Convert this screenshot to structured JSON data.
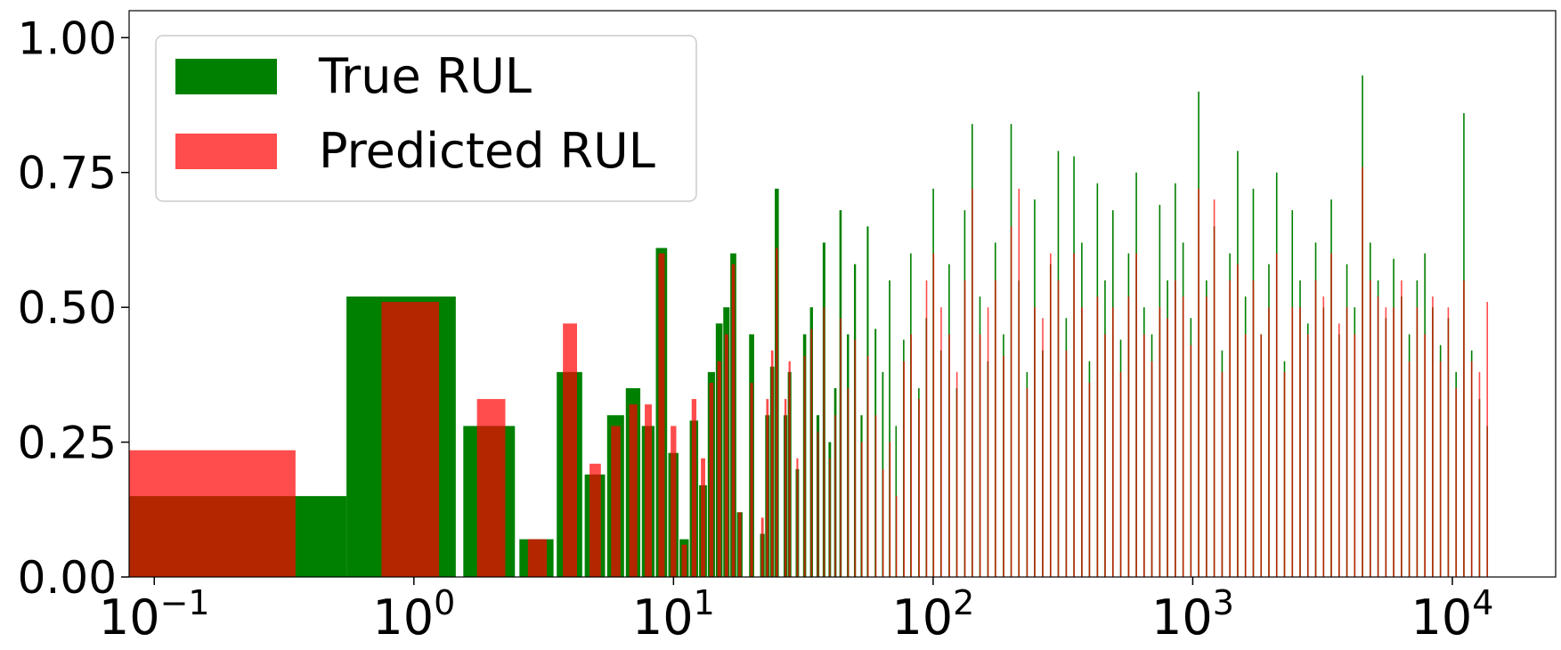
{
  "chart_data": {
    "type": "bar",
    "x_scale": "log",
    "xlim": [
      0.08,
      25000
    ],
    "ylim": [
      0.0,
      1.05
    ],
    "grid": false,
    "legend_position": "top-left",
    "x_tick_labels": [
      {
        "value": 0.1,
        "base": "10",
        "exp": "−1"
      },
      {
        "value": 1,
        "base": "10",
        "exp": "0"
      },
      {
        "value": 10,
        "base": "10",
        "exp": "1"
      },
      {
        "value": 100,
        "base": "10",
        "exp": "2"
      },
      {
        "value": 1000,
        "base": "10",
        "exp": "3"
      },
      {
        "value": 10000,
        "base": "10",
        "exp": "4"
      }
    ],
    "y_tick_labels": [
      "0.00",
      "0.25",
      "0.50",
      "0.75",
      "1.00"
    ],
    "y_ticks": [
      0.0,
      0.25,
      0.5,
      0.75,
      1.0
    ],
    "series": [
      {
        "name": "True RUL",
        "color": "#008000",
        "opacity": 1.0,
        "bar_width_units": 0.45,
        "points": [
          [
            0.1,
            0.15
          ],
          [
            1,
            0.52
          ],
          [
            2,
            0.28
          ],
          [
            3,
            0.07
          ],
          [
            4,
            0.38
          ],
          [
            5,
            0.19
          ],
          [
            6,
            0.3
          ],
          [
            7,
            0.35
          ],
          [
            8,
            0.28
          ],
          [
            9,
            0.61
          ],
          [
            10,
            0.23
          ],
          [
            11,
            0.07
          ],
          [
            12,
            0.29
          ],
          [
            13,
            0.17
          ],
          [
            14,
            0.38
          ],
          [
            15,
            0.47
          ],
          [
            16,
            0.5
          ],
          [
            17,
            0.6
          ],
          [
            18,
            0.12
          ],
          [
            20,
            0.45
          ],
          [
            22,
            0.08
          ],
          [
            23,
            0.3
          ],
          [
            24,
            0.39
          ],
          [
            25,
            0.72
          ],
          [
            27,
            0.3
          ],
          [
            28,
            0.38
          ],
          [
            30,
            0.2
          ],
          [
            32,
            0.45
          ],
          [
            34,
            0.5
          ],
          [
            36,
            0.3
          ],
          [
            38,
            0.62
          ],
          [
            40,
            0.25
          ],
          [
            42,
            0.35
          ],
          [
            44,
            0.68
          ],
          [
            47,
            0.45
          ],
          [
            50,
            0.58
          ],
          [
            53,
            0.3
          ],
          [
            56,
            0.65
          ],
          [
            60,
            0.46
          ],
          [
            64,
            0.38
          ],
          [
            68,
            0.55
          ],
          [
            72,
            0.28
          ],
          [
            77,
            0.44
          ],
          [
            82,
            0.6
          ],
          [
            88,
            0.35
          ],
          [
            94,
            0.48
          ],
          [
            100,
            0.72
          ],
          [
            107,
            0.42
          ],
          [
            115,
            0.58
          ],
          [
            123,
            0.35
          ],
          [
            132,
            0.68
          ],
          [
            141,
            0.84
          ],
          [
            151,
            0.52
          ],
          [
            162,
            0.4
          ],
          [
            173,
            0.62
          ],
          [
            186,
            0.45
          ],
          [
            199,
            0.84
          ],
          [
            213,
            0.55
          ],
          [
            229,
            0.38
          ],
          [
            245,
            0.7
          ],
          [
            263,
            0.42
          ],
          [
            282,
            0.58
          ],
          [
            302,
            0.79
          ],
          [
            324,
            0.48
          ],
          [
            347,
            0.78
          ],
          [
            372,
            0.62
          ],
          [
            398,
            0.4
          ],
          [
            427,
            0.73
          ],
          [
            457,
            0.55
          ],
          [
            490,
            0.68
          ],
          [
            525,
            0.44
          ],
          [
            563,
            0.6
          ],
          [
            603,
            0.75
          ],
          [
            646,
            0.5
          ],
          [
            692,
            0.45
          ],
          [
            742,
            0.69
          ],
          [
            795,
            0.55
          ],
          [
            852,
            0.73
          ],
          [
            913,
            0.62
          ],
          [
            978,
            0.48
          ],
          [
            1048,
            0.9
          ],
          [
            1123,
            0.55
          ],
          [
            1203,
            0.65
          ],
          [
            1290,
            0.42
          ],
          [
            1382,
            0.6
          ],
          [
            1481,
            0.79
          ],
          [
            1587,
            0.52
          ],
          [
            1701,
            0.72
          ],
          [
            1823,
            0.45
          ],
          [
            1953,
            0.58
          ],
          [
            2093,
            0.75
          ],
          [
            2243,
            0.4
          ],
          [
            2404,
            0.68
          ],
          [
            2576,
            0.55
          ],
          [
            2760,
            0.47
          ],
          [
            2958,
            0.62
          ],
          [
            3170,
            0.5
          ],
          [
            3397,
            0.7
          ],
          [
            3640,
            0.45
          ],
          [
            3901,
            0.58
          ],
          [
            4180,
            0.5
          ],
          [
            4480,
            0.93
          ],
          [
            4800,
            0.62
          ],
          [
            5144,
            0.55
          ],
          [
            5512,
            0.48
          ],
          [
            5907,
            0.59
          ],
          [
            6330,
            0.52
          ],
          [
            6783,
            0.45
          ],
          [
            7269,
            0.55
          ],
          [
            7790,
            0.6
          ],
          [
            8348,
            0.5
          ],
          [
            8946,
            0.43
          ],
          [
            9586,
            0.48
          ],
          [
            10273,
            0.38
          ],
          [
            11009,
            0.86
          ],
          [
            11797,
            0.42
          ],
          [
            12642,
            0.33
          ],
          [
            13548,
            0.28
          ]
        ]
      },
      {
        "name": "Predicted RUL",
        "color": "#ff0000",
        "opacity": 0.7,
        "bar_width_units": 0.25,
        "points": [
          [
            0.1,
            0.235
          ],
          [
            1,
            0.51
          ],
          [
            2,
            0.33
          ],
          [
            3,
            0.07
          ],
          [
            4,
            0.47
          ],
          [
            5,
            0.21
          ],
          [
            6,
            0.28
          ],
          [
            7,
            0.32
          ],
          [
            8,
            0.32
          ],
          [
            9,
            0.6
          ],
          [
            10,
            0.28
          ],
          [
            11,
            0.06
          ],
          [
            12,
            0.33
          ],
          [
            13,
            0.22
          ],
          [
            14,
            0.36
          ],
          [
            15,
            0.4
          ],
          [
            16,
            0.45
          ],
          [
            17,
            0.58
          ],
          [
            18,
            0.12
          ],
          [
            20,
            0.36
          ],
          [
            22,
            0.11
          ],
          [
            23,
            0.33
          ],
          [
            24,
            0.42
          ],
          [
            25,
            0.61
          ],
          [
            27,
            0.33
          ],
          [
            28,
            0.4
          ],
          [
            30,
            0.22
          ],
          [
            32,
            0.41
          ],
          [
            34,
            0.46
          ],
          [
            36,
            0.27
          ],
          [
            38,
            0.5
          ],
          [
            40,
            0.22
          ],
          [
            42,
            0.3
          ],
          [
            44,
            0.48
          ],
          [
            47,
            0.35
          ],
          [
            50,
            0.44
          ],
          [
            53,
            0.25
          ],
          [
            56,
            0.41
          ],
          [
            60,
            0.3
          ],
          [
            64,
            0.2
          ],
          [
            68,
            0.25
          ],
          [
            72,
            0.15
          ],
          [
            77,
            0.4
          ],
          [
            82,
            0.45
          ],
          [
            88,
            0.33
          ],
          [
            94,
            0.55
          ],
          [
            100,
            0.6
          ],
          [
            107,
            0.5
          ],
          [
            115,
            0.45
          ],
          [
            123,
            0.38
          ],
          [
            132,
            0.55
          ],
          [
            141,
            0.72
          ],
          [
            151,
            0.45
          ],
          [
            162,
            0.5
          ],
          [
            173,
            0.55
          ],
          [
            186,
            0.41
          ],
          [
            199,
            0.65
          ],
          [
            213,
            0.72
          ],
          [
            229,
            0.35
          ],
          [
            245,
            0.5
          ],
          [
            263,
            0.48
          ],
          [
            282,
            0.6
          ],
          [
            302,
            0.55
          ],
          [
            324,
            0.42
          ],
          [
            347,
            0.6
          ],
          [
            372,
            0.5
          ],
          [
            398,
            0.36
          ],
          [
            427,
            0.52
          ],
          [
            457,
            0.45
          ],
          [
            490,
            0.5
          ],
          [
            525,
            0.38
          ],
          [
            563,
            0.52
          ],
          [
            603,
            0.6
          ],
          [
            646,
            0.45
          ],
          [
            692,
            0.4
          ],
          [
            742,
            0.5
          ],
          [
            795,
            0.48
          ],
          [
            852,
            0.55
          ],
          [
            913,
            0.52
          ],
          [
            978,
            0.43
          ],
          [
            1048,
            0.72
          ],
          [
            1123,
            0.52
          ],
          [
            1203,
            0.7
          ],
          [
            1290,
            0.38
          ],
          [
            1382,
            0.55
          ],
          [
            1481,
            0.58
          ],
          [
            1587,
            0.45
          ],
          [
            1701,
            0.55
          ],
          [
            1823,
            0.45
          ],
          [
            1953,
            0.5
          ],
          [
            2093,
            0.6
          ],
          [
            2243,
            0.38
          ],
          [
            2404,
            0.5
          ],
          [
            2576,
            0.5
          ],
          [
            2760,
            0.45
          ],
          [
            2958,
            0.55
          ],
          [
            3170,
            0.52
          ],
          [
            3397,
            0.6
          ],
          [
            3640,
            0.47
          ],
          [
            3901,
            0.5
          ],
          [
            4180,
            0.45
          ],
          [
            4480,
            0.76
          ],
          [
            4800,
            0.55
          ],
          [
            5144,
            0.52
          ],
          [
            5512,
            0.5
          ],
          [
            5907,
            0.5
          ],
          [
            6330,
            0.55
          ],
          [
            6783,
            0.4
          ],
          [
            7269,
            0.5
          ],
          [
            7790,
            0.45
          ],
          [
            8348,
            0.52
          ],
          [
            8946,
            0.4
          ],
          [
            9586,
            0.5
          ],
          [
            10273,
            0.35
          ],
          [
            11009,
            0.55
          ],
          [
            11797,
            0.4
          ],
          [
            12642,
            0.38
          ],
          [
            13548,
            0.51
          ]
        ]
      }
    ]
  }
}
